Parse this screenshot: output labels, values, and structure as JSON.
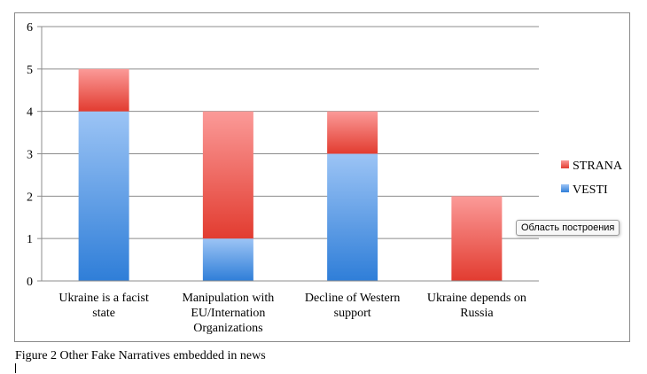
{
  "chart_data": {
    "type": "bar",
    "stacked": true,
    "categories": [
      [
        "Ukraine is a facist",
        "state"
      ],
      [
        "Manipulation with",
        "EU/Internation",
        "Organizations"
      ],
      [
        "Decline of Western",
        "support"
      ],
      [
        "Ukraine depends on",
        "Russia"
      ]
    ],
    "series": [
      {
        "name": "VESTI",
        "values": [
          4,
          1,
          3,
          0
        ],
        "color_top": "#9cc4f5",
        "color_bottom": "#2f7ed8"
      },
      {
        "name": "STRANA",
        "values": [
          1,
          3,
          1,
          2
        ],
        "color_top": "#fb9a98",
        "color_bottom": "#e23c30"
      }
    ],
    "ylim": [
      0,
      6
    ],
    "yticks": [
      0,
      1,
      2,
      3,
      4,
      5,
      6
    ],
    "grid": true,
    "legend": "right",
    "legend_order": [
      "STRANA",
      "VESTI"
    ]
  },
  "tooltip": "Область построения",
  "caption": "Figure 2 Other Fake Narratives embedded in news"
}
